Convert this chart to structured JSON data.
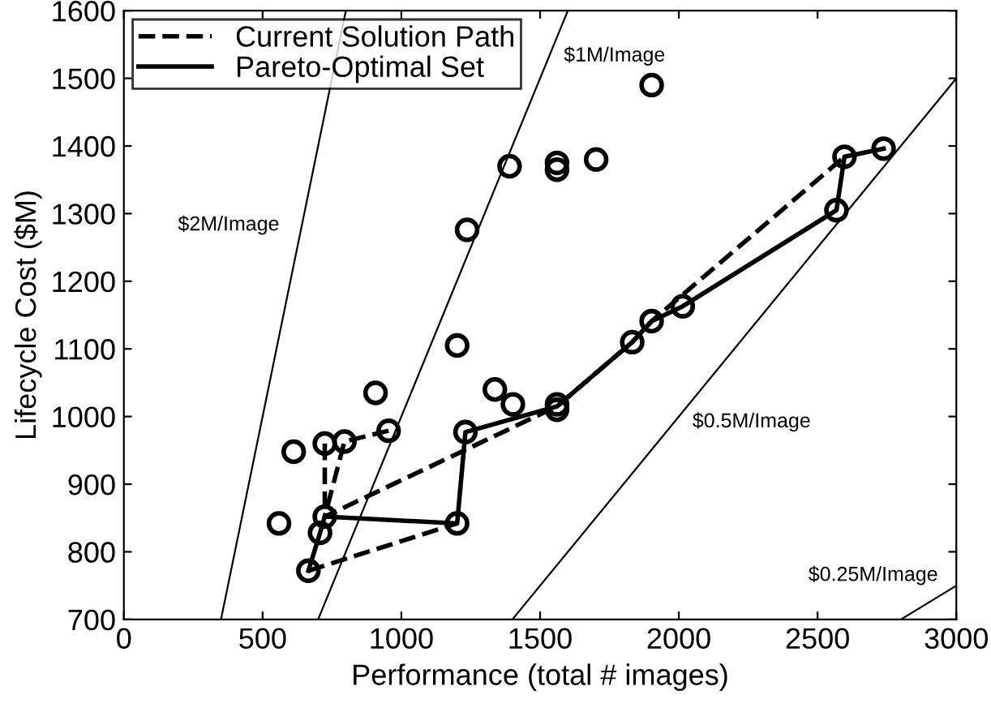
{
  "chart_data": {
    "type": "scatter",
    "xlabel": "Performance (total # images)",
    "ylabel": "Lifecycle Cost ($M)",
    "xlim": [
      0,
      3000
    ],
    "ylim": [
      700,
      1600
    ],
    "xticks": [
      0,
      500,
      1000,
      1500,
      2000,
      2500,
      3000
    ],
    "yticks": [
      700,
      800,
      900,
      1000,
      1100,
      1200,
      1300,
      1400,
      1500,
      1600
    ],
    "grid": false,
    "legend": "top left",
    "series": [
      {
        "color": "#000000",
        "marker": "circle",
        "x": [
          559,
          612,
          724,
          795,
          907,
          954,
          665,
          707,
          724,
          1201,
          1231,
          1201,
          1337,
          1402,
          1561,
          1561,
          1237,
          1390,
          1561,
          1561,
          1702,
          1902,
          1832,
          1902,
          2014,
          2568,
          2597,
          2738
        ],
        "values": [
          842,
          948,
          960,
          963,
          1035,
          979,
          772,
          828,
          852,
          842,
          977,
          1105,
          1040,
          1018,
          1018,
          1010,
          1276,
          1370,
          1365,
          1375,
          1380,
          1490,
          1110,
          1141,
          1163,
          1305,
          1384,
          1396
        ]
      },
      {
        "type": "line",
        "name": "Current Solution Path",
        "color": "#000000",
        "line_style": "dashed",
        "marker": "none",
        "x": [
          954,
          795,
          724,
          1561,
          1832,
          1902,
          2597
        ],
        "values": [
          979,
          963,
          852,
          1015,
          1110,
          1141,
          1384
        ]
      },
      {
        "type": "line",
        "name": "Pareto-Optimal Set",
        "color": "#000000",
        "line_style": "solid",
        "marker": "none",
        "x": [
          665,
          707,
          724,
          1201,
          1231,
          1561,
          1832,
          1902,
          2014,
          2568,
          2597,
          2738
        ],
        "values": [
          772,
          828,
          852,
          842,
          977,
          1015,
          1110,
          1141,
          1163,
          1305,
          1384,
          1396
        ]
      },
      {
        "type": "line",
        "color": "#000000",
        "line_style": "dashed",
        "marker": "none",
        "x": [
          724,
          724
        ],
        "values": [
          960,
          852
        ]
      },
      {
        "type": "line",
        "color": "#000000",
        "line_style": "dashed",
        "marker": "none",
        "x": [
          665,
          1201
        ],
        "values": [
          772,
          842
        ]
      },
      {
        "type": "line",
        "color": "#000000",
        "line_style": "solid",
        "marker": "none",
        "x": [
          350,
          800
        ],
        "values": [
          700,
          1600
        ]
      },
      {
        "type": "line",
        "color": "#000000",
        "line_style": "solid",
        "marker": "none",
        "x": [
          700,
          1600
        ],
        "values": [
          700,
          1600
        ]
      },
      {
        "type": "line",
        "color": "#000000",
        "line_style": "solid",
        "marker": "none",
        "x": [
          1400,
          3000
        ],
        "values": [
          700,
          1500
        ]
      },
      {
        "type": "line",
        "color": "#000000",
        "line_style": "solid",
        "marker": "none",
        "x": [
          2800,
          3000
        ],
        "values": [
          700,
          750
        ]
      }
    ],
    "annotations": [
      {
        "text": "$2M/Image",
        "x": 641.5,
        "y": 1283
      },
      {
        "text": "$1M/Image",
        "x": 1553,
        "y": 1553
      },
      {
        "text": "$0.5M/Image",
        "x": 1984,
        "y": 992
      },
      {
        "text": "$0.25M/Image",
        "x": 2950,
        "y": 737.5
      }
    ]
  }
}
